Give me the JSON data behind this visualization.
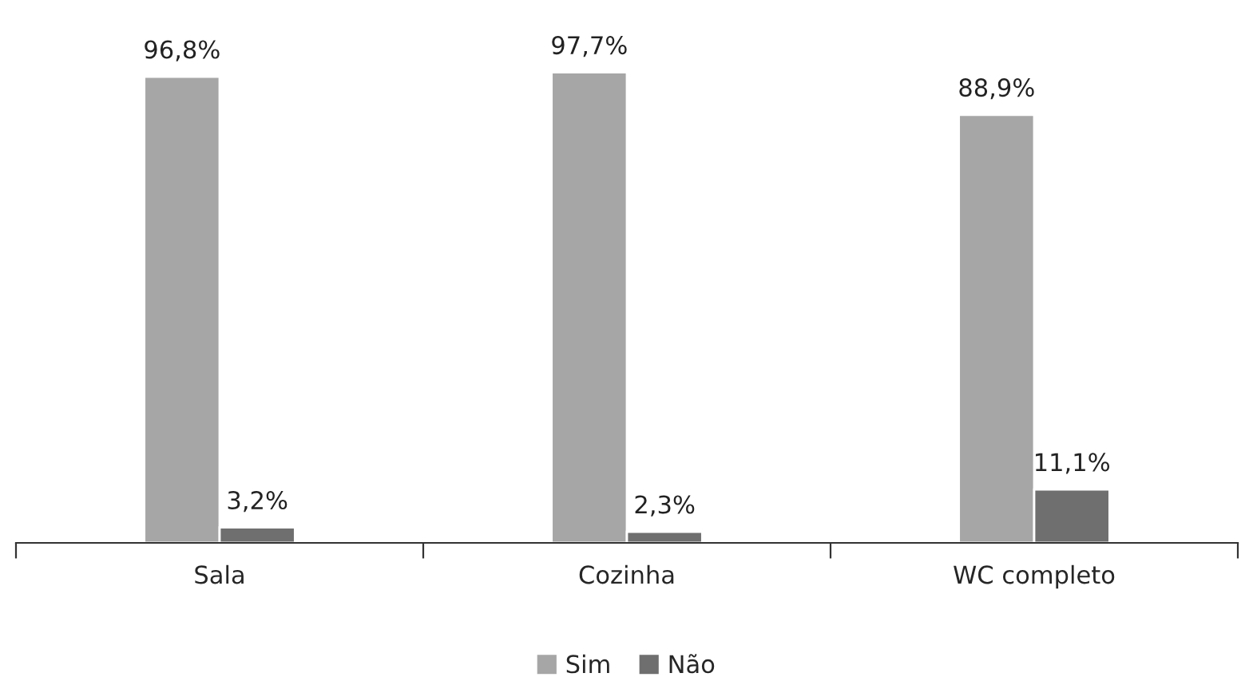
{
  "chart_data": {
    "type": "bar",
    "categories": [
      "Sala",
      "Cozinha",
      "WC completo"
    ],
    "series": [
      {
        "name": "Sim",
        "color": "#a6a6a6",
        "values": [
          96.8,
          97.7,
          88.9
        ],
        "value_labels": [
          "96,8%",
          "97,7%",
          "88,9%"
        ]
      },
      {
        "name": "Não",
        "color": "#6f6f6f",
        "values": [
          3.2,
          2.3,
          11.1
        ],
        "value_labels": [
          "3,2%",
          "2,3%",
          "11,1%"
        ]
      }
    ],
    "legend": "bottom",
    "grid": false
  }
}
